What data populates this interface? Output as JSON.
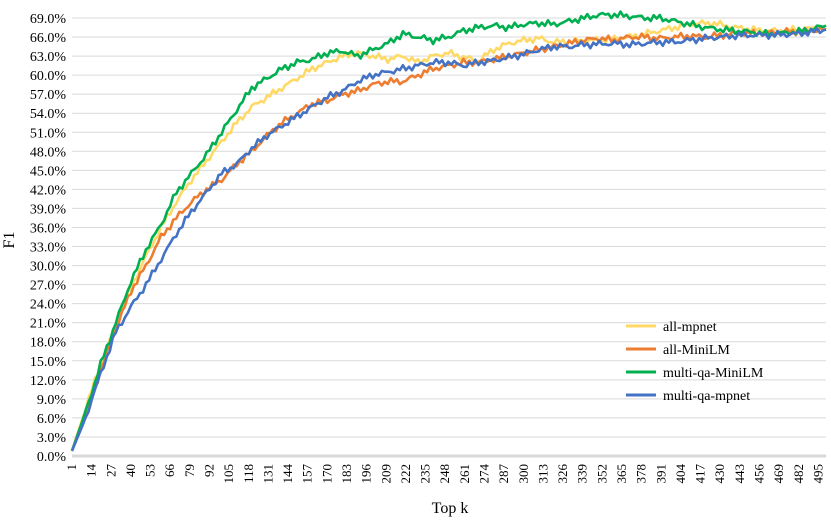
{
  "chart_data": {
    "type": "line",
    "title": "",
    "xlabel": "Top k",
    "ylabel": "F1",
    "ylim": [
      0,
      69
    ],
    "ytick_step": 3,
    "ytick_labels": [
      "0.0%",
      "3.0%",
      "6.0%",
      "9.0%",
      "12.0%",
      "15.0%",
      "18.0%",
      "21.0%",
      "24.0%",
      "27.0%",
      "30.0%",
      "33.0%",
      "36.0%",
      "39.0%",
      "42.0%",
      "45.0%",
      "48.0%",
      "51.0%",
      "54.0%",
      "57.0%",
      "60.0%",
      "63.0%",
      "66.0%",
      "69.0%"
    ],
    "x_tick_labels": [
      "1",
      "14",
      "27",
      "40",
      "53",
      "66",
      "79",
      "92",
      "105",
      "118",
      "131",
      "144",
      "157",
      "170",
      "183",
      "196",
      "209",
      "222",
      "235",
      "248",
      "261",
      "274",
      "287",
      "300",
      "313",
      "326",
      "339",
      "352",
      "365",
      "378",
      "391",
      "404",
      "417",
      "430",
      "443",
      "456",
      "469",
      "482",
      "495"
    ],
    "xlim": [
      1,
      500
    ],
    "grid": true,
    "legend_position": "bottom-right",
    "series": [
      {
        "name": "all-mpnet",
        "color": "#FFD966",
        "x": [
          1,
          10,
          20,
          30,
          40,
          50,
          60,
          70,
          80,
          90,
          100,
          110,
          120,
          130,
          140,
          150,
          160,
          170,
          180,
          190,
          200,
          210,
          220,
          230,
          240,
          250,
          260,
          270,
          280,
          290,
          300,
          310,
          320,
          330,
          340,
          350,
          360,
          370,
          380,
          390,
          400,
          410,
          420,
          430,
          440,
          450,
          460,
          470,
          480,
          490,
          500
        ],
        "y": [
          0.8,
          7.5,
          14.5,
          20.5,
          26.5,
          31.5,
          36,
          40,
          43.5,
          46.5,
          49.5,
          52.5,
          55,
          56.5,
          58,
          59.5,
          61,
          62,
          63,
          63.5,
          63,
          62.5,
          63,
          62,
          63,
          63.5,
          62.8,
          62.3,
          64,
          65,
          65.5,
          65.8,
          65.2,
          65.3,
          65.5,
          65.5,
          65.8,
          66,
          66.5,
          67,
          67.5,
          68,
          68.2,
          68,
          67.5,
          67.2,
          67,
          67,
          67.2,
          67.3,
          67.5
        ]
      },
      {
        "name": "all-MiniLM",
        "color": "#ED7D31",
        "x": [
          1,
          10,
          20,
          30,
          40,
          50,
          60,
          70,
          80,
          90,
          100,
          110,
          120,
          130,
          140,
          150,
          160,
          170,
          180,
          190,
          200,
          210,
          220,
          230,
          240,
          250,
          260,
          270,
          280,
          290,
          300,
          310,
          320,
          330,
          340,
          350,
          360,
          370,
          380,
          390,
          400,
          410,
          420,
          430,
          440,
          450,
          460,
          470,
          480,
          490,
          500
        ],
        "y": [
          0.8,
          6.5,
          13.5,
          20,
          26,
          30,
          34.5,
          37.5,
          40,
          42,
          43.5,
          46,
          48,
          50.5,
          52.5,
          54,
          55.5,
          56,
          57,
          57.5,
          58.5,
          59,
          59,
          60,
          61,
          61.5,
          62,
          62,
          62.5,
          63,
          63.5,
          64,
          64.5,
          65,
          65.5,
          65.8,
          65.5,
          66,
          66,
          65.8,
          66,
          66.2,
          66,
          66.3,
          66.5,
          66.6,
          66.7,
          66.8,
          66.9,
          67,
          67.2
        ]
      },
      {
        "name": "multi-qa-MiniLM",
        "color": "#00B050",
        "x": [
          1,
          10,
          20,
          30,
          40,
          50,
          60,
          70,
          80,
          90,
          100,
          110,
          120,
          130,
          140,
          150,
          160,
          170,
          180,
          190,
          200,
          210,
          220,
          230,
          240,
          250,
          260,
          270,
          280,
          290,
          300,
          310,
          320,
          330,
          340,
          350,
          360,
          370,
          380,
          390,
          400,
          410,
          420,
          430,
          440,
          450,
          460,
          470,
          480,
          490,
          500
        ],
        "y": [
          0.8,
          7,
          14.5,
          21,
          27.5,
          32.5,
          36.5,
          41.5,
          44.5,
          47.5,
          51,
          54.5,
          58,
          59.5,
          61,
          62,
          62.5,
          63.5,
          63.8,
          63,
          64,
          65,
          66.5,
          66,
          65.5,
          66,
          67,
          67.5,
          67.8,
          67.5,
          68,
          68.2,
          68,
          68.5,
          69,
          69.5,
          69.5,
          69.3,
          69,
          69,
          68.5,
          68,
          67.5,
          67.2,
          67,
          66.8,
          66.5,
          66.6,
          66.8,
          67.2,
          67.8
        ]
      },
      {
        "name": "multi-qa-mpnet",
        "color": "#4472C4",
        "x": [
          1,
          10,
          20,
          30,
          40,
          50,
          60,
          70,
          80,
          90,
          100,
          110,
          120,
          130,
          140,
          150,
          160,
          170,
          180,
          190,
          200,
          210,
          220,
          230,
          240,
          250,
          260,
          270,
          280,
          290,
          300,
          310,
          320,
          330,
          340,
          350,
          360,
          370,
          380,
          390,
          400,
          410,
          420,
          430,
          440,
          450,
          460,
          470,
          480,
          490,
          500
        ],
        "y": [
          0.8,
          6,
          13,
          19.5,
          23.5,
          27,
          31,
          35,
          38.5,
          41.5,
          44.5,
          46,
          48.5,
          50.5,
          52,
          53.5,
          55,
          56.5,
          57.5,
          59,
          60,
          60.5,
          61,
          61.5,
          62,
          62,
          61.5,
          62,
          62.3,
          62.8,
          63.3,
          64,
          64.5,
          64.5,
          64.8,
          64.9,
          65,
          64.8,
          65,
          65.2,
          65.2,
          65.5,
          65.8,
          66,
          66.2,
          66.3,
          66.3,
          66.4,
          66.5,
          66.8,
          67.2
        ]
      }
    ]
  }
}
